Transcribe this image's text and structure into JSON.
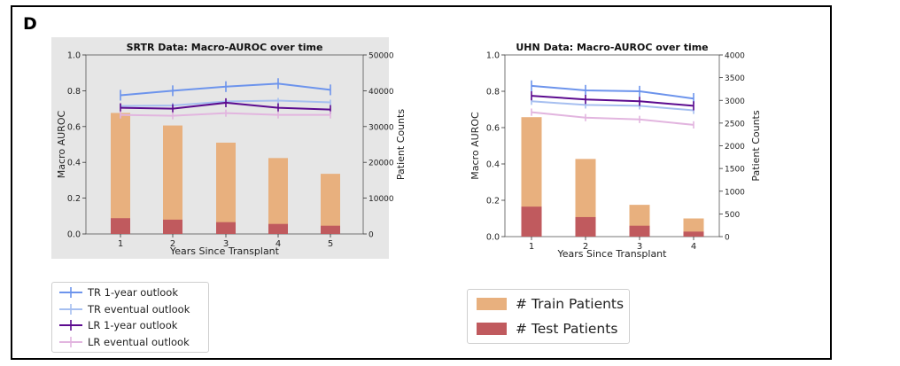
{
  "panel_label": "D",
  "chart_data": [
    {
      "type": "bar",
      "title": "SRTR Data: Macro-AUROC over time",
      "xlabel": "Years Since Transplant",
      "ylabel": "Macro AUROC",
      "ylabel_right": "Patient Counts",
      "ylim": [
        0,
        1.0
      ],
      "ylim_right": [
        0,
        50000
      ],
      "y_ticks": [
        0.0,
        0.2,
        0.4,
        0.6,
        0.8,
        1.0
      ],
      "y_right_ticks": [
        0,
        10000,
        20000,
        30000,
        40000,
        50000
      ],
      "categories": [
        "1",
        "2",
        "3",
        "4",
        "5"
      ],
      "background": "#e6e6e6",
      "bar_series": [
        {
          "name": "# Train Patients",
          "color": "#e8b07e",
          "values": [
            33800,
            30300,
            25500,
            21200,
            16800
          ]
        },
        {
          "name": "# Test Patients",
          "color": "#c05a5e",
          "values": [
            4400,
            4000,
            3300,
            2800,
            2300
          ]
        }
      ],
      "line_series": [
        {
          "name": "TR 1-year outlook",
          "color": "#6d94ec",
          "values": [
            0.775,
            0.8,
            0.823,
            0.84,
            0.805
          ],
          "err": 0.03
        },
        {
          "name": "TR eventual outlook",
          "color": "#a6bff0",
          "values": [
            0.715,
            0.718,
            0.74,
            0.745,
            0.735
          ],
          "err": 0.015
        },
        {
          "name": "LR 1-year outlook",
          "color": "#5c0b8f",
          "values": [
            0.705,
            0.7,
            0.733,
            0.705,
            0.695
          ],
          "err": 0.025
        },
        {
          "name": "LR eventual outlook",
          "color": "#e2b5df",
          "values": [
            0.665,
            0.66,
            0.675,
            0.665,
            0.665
          ],
          "err": 0.02
        }
      ]
    },
    {
      "type": "bar",
      "title": "UHN Data: Macro-AUROC over time",
      "xlabel": "Years Since Transplant",
      "ylabel": "Macro AUROC",
      "ylabel_right": "Patient Counts",
      "ylim": [
        0,
        1.0
      ],
      "ylim_right": [
        0,
        4000
      ],
      "y_ticks": [
        0.0,
        0.2,
        0.4,
        0.6,
        0.8,
        1.0
      ],
      "y_right_ticks": [
        0,
        500,
        1000,
        1500,
        2000,
        2500,
        3000,
        3500,
        4000
      ],
      "categories": [
        "1",
        "2",
        "3",
        "4"
      ],
      "background": "#ffffff",
      "bar_series": [
        {
          "name": "# Train Patients",
          "color": "#e8b07e",
          "values": [
            2630,
            1710,
            700,
            400
          ]
        },
        {
          "name": "# Test Patients",
          "color": "#c05a5e",
          "values": [
            660,
            430,
            240,
            110
          ]
        }
      ],
      "line_series": [
        {
          "name": "TR 1-year outlook",
          "color": "#6d94ec",
          "values": [
            0.83,
            0.805,
            0.8,
            0.76
          ],
          "err": 0.03
        },
        {
          "name": "TR eventual outlook",
          "color": "#a6bff0",
          "values": [
            0.745,
            0.725,
            0.72,
            0.695
          ],
          "err": 0.02
        },
        {
          "name": "LR 1-year outlook",
          "color": "#5c0b8f",
          "values": [
            0.775,
            0.755,
            0.745,
            0.72
          ],
          "err": 0.025
        },
        {
          "name": "LR eventual outlook",
          "color": "#e2b5df",
          "values": [
            0.685,
            0.655,
            0.645,
            0.615
          ],
          "err": 0.02
        }
      ]
    }
  ],
  "legend_lines": [
    {
      "label": "TR 1-year outlook",
      "color": "#6d94ec"
    },
    {
      "label": "TR eventual outlook",
      "color": "#a6bff0"
    },
    {
      "label": "LR 1-year outlook",
      "color": "#5c0b8f"
    },
    {
      "label": "LR eventual outlook",
      "color": "#e2b5df"
    }
  ],
  "legend_bars": [
    {
      "label": "# Train Patients",
      "color": "#e8b07e"
    },
    {
      "label": "# Test Patients",
      "color": "#c05a5e"
    }
  ]
}
